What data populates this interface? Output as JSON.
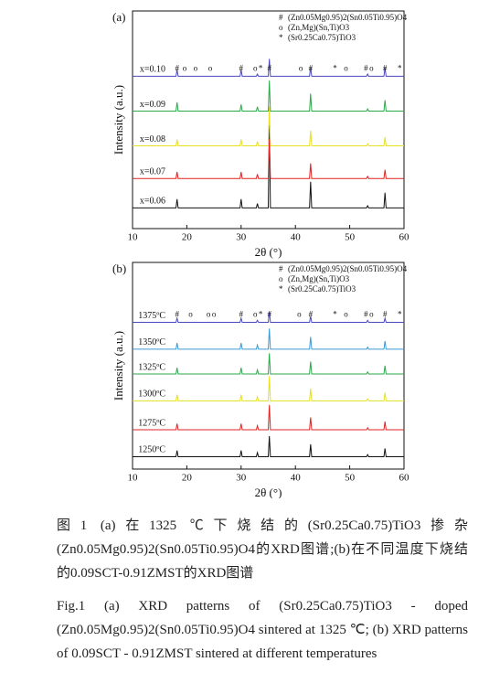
{
  "chart_data": [
    {
      "type": "line",
      "panel_label": "(a)",
      "xlabel": "2θ (°)",
      "ylabel": "Intensity (a.u.)",
      "xlim": [
        10,
        60
      ],
      "xticks": [
        10,
        20,
        30,
        40,
        50,
        60
      ],
      "ylim": [
        0,
        100
      ],
      "x": [
        10,
        18,
        18.2,
        18.4,
        29.8,
        30,
        30.2,
        32.8,
        33,
        33.2,
        35,
        35.2,
        35.4,
        42.6,
        42.8,
        43,
        53.1,
        53.3,
        53.5,
        56.3,
        56.5,
        56.7,
        60
      ],
      "series": [
        {
          "name": "x=0.06",
          "color": "#111111",
          "values": [
            9.5,
            9.5,
            13.5,
            9.5,
            9.5,
            13.5,
            9.5,
            9.5,
            11.5,
            9.5,
            9.5,
            47.5,
            9.5,
            9.5,
            21.5,
            9.5,
            9.5,
            10.5,
            9.5,
            9.5,
            16.5,
            9.5,
            9.5
          ]
        },
        {
          "name": "x=0.07",
          "color": "#e02020",
          "values": [
            23,
            23,
            26,
            23,
            23,
            26,
            23,
            23,
            25,
            23,
            23,
            41,
            23,
            23,
            30,
            23,
            23,
            24,
            23,
            23,
            27,
            23,
            23
          ]
        },
        {
          "name": "x=0.08",
          "color": "#e6e020",
          "values": [
            38,
            38,
            41,
            38,
            38,
            41,
            38,
            38,
            40,
            38,
            38,
            56,
            38,
            38,
            45,
            38,
            38,
            39,
            38,
            38,
            42,
            38,
            38
          ]
        },
        {
          "name": "x=0.09",
          "color": "#2aa84a",
          "values": [
            54,
            54,
            58,
            54,
            54,
            57,
            54,
            54,
            56,
            54,
            54,
            68,
            54,
            54,
            62,
            54,
            54,
            55,
            54,
            54,
            59,
            54,
            54
          ]
        },
        {
          "name": "x=0.10",
          "color": "#4a4ac0",
          "values": [
            70,
            70,
            73,
            70,
            70,
            73,
            70,
            70,
            71,
            70,
            70,
            78,
            70,
            70,
            74,
            70,
            70,
            71,
            70,
            70,
            74,
            70,
            70
          ]
        }
      ],
      "legend": [
        {
          "symbol": "#",
          "label": "(Zn0.05Mg0.95)2(Sn0.05Ti0.95)O4"
        },
        {
          "symbol": "o",
          "label": "(Zn,Mg)(Sn,Ti)O3"
        },
        {
          "symbol": "*",
          "label": "(Sr0.25Ca0.75)TiO3"
        }
      ],
      "peak_marks": {
        "x": [
          18.2,
          19.6,
          21.6,
          24.3,
          30,
          32.6,
          33.6,
          35.2,
          41,
          42.8,
          47.3,
          49.3,
          53,
          54,
          56.5,
          59.2
        ],
        "symbols": [
          "#",
          "o",
          "o",
          "o",
          "#",
          "o",
          "*",
          "#",
          "o",
          "#",
          "*",
          "o",
          "#",
          "o",
          "#",
          "*"
        ]
      }
    },
    {
      "type": "line",
      "panel_label": "(b)",
      "xlabel": "2θ (°)",
      "ylabel": "Intensity (a.u.)",
      "xlim": [
        10,
        60
      ],
      "xticks": [
        10,
        20,
        30,
        40,
        50,
        60
      ],
      "ylim": [
        0,
        100
      ],
      "x": [
        10,
        18,
        18.2,
        18.4,
        29.8,
        30,
        30.2,
        32.8,
        33,
        33.2,
        35,
        35.2,
        35.4,
        42.6,
        42.8,
        43,
        53.1,
        53.3,
        53.5,
        56.3,
        56.5,
        56.7,
        60
      ],
      "series": [
        {
          "name": "1250ºC",
          "color": "#111111",
          "values": [
            6,
            6,
            9,
            6,
            6,
            9,
            6,
            6,
            8,
            6,
            6,
            16,
            6,
            6,
            12,
            6,
            6,
            7,
            6,
            6,
            10,
            6,
            6
          ]
        },
        {
          "name": "1275ºC",
          "color": "#e02020",
          "values": [
            19,
            19,
            22,
            19,
            19,
            22,
            19,
            19,
            21,
            19,
            19,
            31,
            19,
            19,
            25,
            19,
            19,
            20,
            19,
            19,
            23,
            19,
            19
          ]
        },
        {
          "name": "1300ºC",
          "color": "#e6e020",
          "values": [
            33,
            33,
            36,
            33,
            33,
            36,
            33,
            33,
            35,
            33,
            33,
            45,
            33,
            33,
            39,
            33,
            33,
            34,
            33,
            33,
            37,
            33,
            33
          ]
        },
        {
          "name": "1325ºC",
          "color": "#2aa84a",
          "values": [
            46,
            46,
            49,
            46,
            46,
            49,
            46,
            46,
            48,
            46,
            46,
            56,
            46,
            46,
            52,
            46,
            46,
            47,
            46,
            46,
            50,
            46,
            46
          ]
        },
        {
          "name": "1350ºC",
          "color": "#3a9ad8",
          "values": [
            58,
            58,
            61,
            58,
            58,
            61,
            58,
            58,
            60,
            58,
            58,
            68,
            58,
            58,
            64,
            58,
            58,
            59,
            58,
            58,
            62,
            58,
            58
          ]
        },
        {
          "name": "1375ºC",
          "color": "#4a4ac0",
          "values": [
            71,
            71,
            73,
            71,
            71,
            73,
            71,
            71,
            72,
            71,
            71,
            76,
            71,
            71,
            74,
            71,
            71,
            72,
            71,
            71,
            73,
            71,
            71
          ]
        }
      ],
      "legend": [
        {
          "symbol": "#",
          "label": "(Zn0.05Mg0.95)2(Sn0.05Ti0.95)O4"
        },
        {
          "symbol": "o",
          "label": "(Zn,Mg)(Sn,Ti)O3"
        },
        {
          "symbol": "*",
          "label": "(Sr0.25Ca0.75)TiO3"
        }
      ],
      "peak_marks": {
        "x": [
          18.2,
          20.7,
          24,
          25,
          30,
          32.6,
          33.6,
          35.2,
          40.7,
          42.8,
          47.3,
          49.3,
          53,
          54,
          56.5,
          59.2
        ],
        "symbols": [
          "#",
          "o",
          "o",
          "o",
          "#",
          "o",
          "*",
          "#",
          "o",
          "#",
          "*",
          "o",
          "#",
          "o",
          "#",
          "*"
        ]
      }
    }
  ],
  "caption": {
    "zh": "图1 (a)在1325 ℃下烧结的(Sr0.25Ca0.75)TiO3掺杂(Zn0.05Mg0.95)2(Sn0.05Ti0.95)O4的XRD图谱;(b)在不同温度下烧结的0.09SCT-0.91ZMST的XRD图谱",
    "en": "Fig.1 (a) XRD patterns of (Sr0.25Ca0.75)TiO3 - doped (Zn0.05Mg0.95)2(Sn0.05Ti0.95)O4 sintered at 1325 ℃; (b) XRD patterns of 0.09SCT - 0.91ZMST sintered at different temperatures"
  }
}
